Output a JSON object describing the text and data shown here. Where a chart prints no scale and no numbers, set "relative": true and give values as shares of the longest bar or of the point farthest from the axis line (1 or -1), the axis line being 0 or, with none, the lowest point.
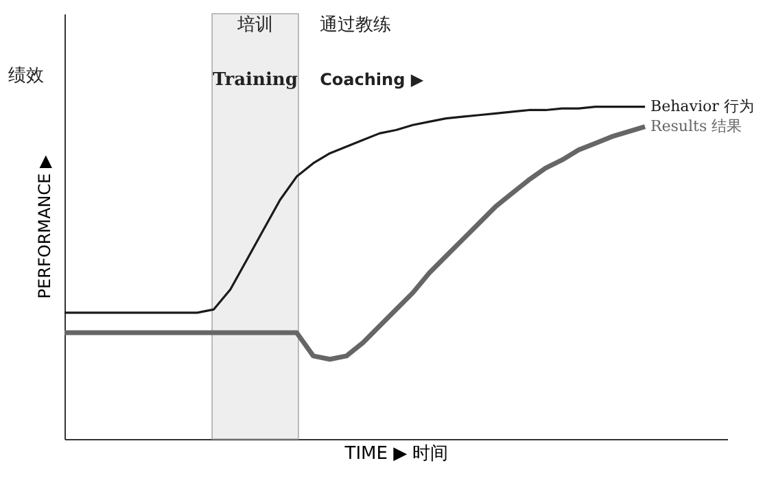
{
  "chart_data": {
    "type": "line",
    "relative": true,
    "xlabel": "TIME ▶ 时间",
    "ylabel": "PERFORMANCE ▶",
    "categories": [
      null,
      null,
      null,
      null,
      null,
      null,
      null,
      null,
      null,
      null,
      null,
      null,
      null,
      null,
      null,
      null,
      null,
      null,
      null,
      null,
      null,
      null,
      null,
      null,
      null,
      null,
      null,
      null,
      null,
      null,
      null,
      null,
      null,
      null,
      null,
      null
    ],
    "series": [
      {
        "name": "Behavior 行为",
        "color": "#1a1a1a",
        "values": [
          0.38,
          0.38,
          0.38,
          0.38,
          0.38,
          0.38,
          0.38,
          0.38,
          0.38,
          0.39,
          0.45,
          0.54,
          0.63,
          0.72,
          0.79,
          0.83,
          0.86,
          0.88,
          0.9,
          0.92,
          0.93,
          0.945,
          0.955,
          0.965,
          0.97,
          0.975,
          0.98,
          0.985,
          0.99,
          0.99,
          0.995,
          0.995,
          1.0,
          1.0,
          1.0,
          1.0
        ]
      },
      {
        "name": "Results 结果",
        "color": "#666666",
        "values": [
          0.32,
          0.32,
          0.32,
          0.32,
          0.32,
          0.32,
          0.32,
          0.32,
          0.32,
          0.32,
          0.32,
          0.32,
          0.32,
          0.32,
          0.32,
          0.25,
          0.24,
          0.25,
          0.29,
          0.34,
          0.39,
          0.44,
          0.5,
          0.55,
          0.6,
          0.65,
          0.7,
          0.74,
          0.78,
          0.815,
          0.84,
          0.87,
          0.89,
          0.91,
          0.925,
          0.94
        ]
      }
    ],
    "annotations": [
      "培训",
      "Training",
      "通过教练",
      "Coaching ▶",
      "绩效"
    ],
    "tick_labels": false,
    "grid": false,
    "marker": "none",
    "line_style": "solid"
  }
}
